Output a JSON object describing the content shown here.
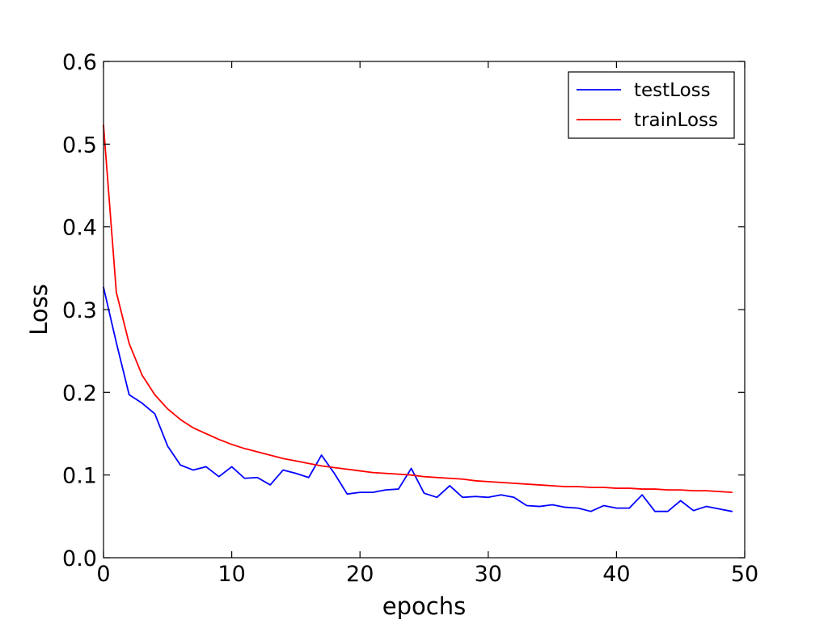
{
  "chart_data": {
    "type": "line",
    "title": "",
    "xlabel": "epochs",
    "ylabel": "Loss",
    "xlim": [
      0,
      50
    ],
    "ylim": [
      0.0,
      0.6
    ],
    "x_ticks": [
      0,
      10,
      20,
      30,
      40,
      50
    ],
    "x_tick_labels": [
      "0",
      "10",
      "20",
      "30",
      "40",
      "50"
    ],
    "y_ticks": [
      0.0,
      0.1,
      0.2,
      0.3,
      0.4,
      0.5,
      0.6
    ],
    "y_tick_labels": [
      "0.0",
      "0.1",
      "0.2",
      "0.3",
      "0.4",
      "0.5",
      "0.6"
    ],
    "grid": false,
    "legend_position": "top-right",
    "x": [
      0,
      1,
      2,
      3,
      4,
      5,
      6,
      7,
      8,
      9,
      10,
      11,
      12,
      13,
      14,
      15,
      16,
      17,
      18,
      19,
      20,
      21,
      22,
      23,
      24,
      25,
      26,
      27,
      28,
      29,
      30,
      31,
      32,
      33,
      34,
      35,
      36,
      37,
      38,
      39,
      40,
      41,
      42,
      43,
      44,
      45,
      46,
      47,
      48,
      49
    ],
    "series": [
      {
        "name": "testLoss",
        "color": "#0000ff",
        "values": [
          0.327,
          0.26,
          0.197,
          0.187,
          0.174,
          0.135,
          0.112,
          0.106,
          0.11,
          0.098,
          0.11,
          0.096,
          0.097,
          0.088,
          0.106,
          0.102,
          0.097,
          0.124,
          0.102,
          0.077,
          0.079,
          0.079,
          0.082,
          0.083,
          0.108,
          0.078,
          0.073,
          0.087,
          0.073,
          0.074,
          0.073,
          0.076,
          0.073,
          0.063,
          0.062,
          0.064,
          0.061,
          0.06,
          0.056,
          0.063,
          0.06,
          0.06,
          0.076,
          0.056,
          0.056,
          0.069,
          0.057,
          0.062,
          0.059,
          0.056
        ]
      },
      {
        "name": "trainLoss",
        "color": "#ff0000",
        "values": [
          0.523,
          0.321,
          0.259,
          0.221,
          0.197,
          0.18,
          0.167,
          0.157,
          0.15,
          0.143,
          0.137,
          0.132,
          0.128,
          0.124,
          0.12,
          0.117,
          0.114,
          0.111,
          0.109,
          0.107,
          0.105,
          0.103,
          0.102,
          0.101,
          0.1,
          0.098,
          0.097,
          0.096,
          0.095,
          0.093,
          0.092,
          0.091,
          0.09,
          0.089,
          0.088,
          0.087,
          0.086,
          0.086,
          0.085,
          0.085,
          0.084,
          0.084,
          0.083,
          0.083,
          0.082,
          0.082,
          0.081,
          0.081,
          0.08,
          0.079
        ]
      }
    ]
  }
}
